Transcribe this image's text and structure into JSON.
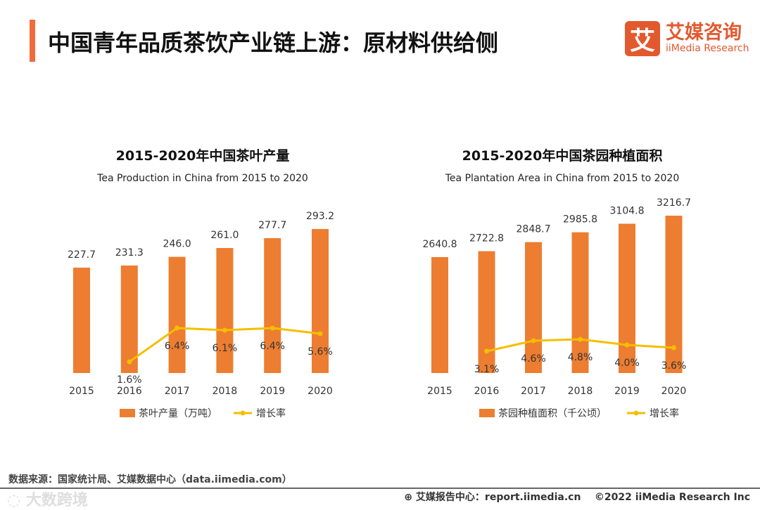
{
  "header": {
    "title": "中国青年品质茶饮产业链上游：原材料供给侧"
  },
  "logo": {
    "mark": "艾",
    "cn": "艾媒咨询",
    "en": "iiMedia Research"
  },
  "footer": {
    "source": "数据来源：国家统计局、艾媒数据中心（data.iimedia.com）",
    "report": "艾媒报告中心：report.iimedia.cn",
    "copyright": "©2022  iiMedia Research  Inc",
    "watermark": "大数跨境"
  },
  "colors": {
    "bar": "#ed7d31",
    "line": "#f5be00"
  },
  "chart_data": [
    {
      "type": "bar",
      "title": "2015-2020年中国茶叶产量",
      "subtitle": "Tea Production in China from 2015 to 2020",
      "categories": [
        "2015",
        "2016",
        "2017",
        "2018",
        "2019",
        "2020"
      ],
      "series": [
        {
          "name": "茶叶产量（万吨）",
          "type": "bar",
          "values": [
            227.7,
            231.3,
            246.0,
            261.0,
            277.7,
            293.2
          ],
          "labels": [
            "227.7",
            "231.3",
            "246.0",
            "261.0",
            "277.7",
            "293.2"
          ]
        },
        {
          "name": "增长率",
          "type": "line",
          "values": [
            null,
            1.6,
            6.4,
            6.1,
            6.4,
            5.6
          ],
          "labels": [
            "",
            "1.6%",
            "6.4%",
            "6.1%",
            "6.4%",
            "5.6%"
          ]
        }
      ],
      "ylim": [
        49,
        300
      ],
      "legend": "bottom"
    },
    {
      "type": "bar",
      "title": "2015-2020年中国茶园种植面积",
      "subtitle": "Tea Plantation Area in China from 2015 to 2020",
      "categories": [
        "2015",
        "2016",
        "2017",
        "2018",
        "2019",
        "2020"
      ],
      "series": [
        {
          "name": "茶园种植面积（千公顷）",
          "type": "bar",
          "values": [
            2640.8,
            2722.8,
            2848.7,
            2985.8,
            3104.8,
            3216.7
          ],
          "labels": [
            "2640.8",
            "2722.8",
            "2848.7",
            "2985.8",
            "3104.8",
            "3216.7"
          ]
        },
        {
          "name": "增长率",
          "type": "line",
          "values": [
            null,
            3.1,
            4.6,
            4.8,
            4.0,
            3.6
          ],
          "labels": [
            "",
            "3.1%",
            "4.6%",
            "4.8%",
            "4.0%",
            "3.6%"
          ]
        }
      ],
      "ylim": [
        1029,
        3300
      ],
      "legend": "bottom"
    }
  ]
}
